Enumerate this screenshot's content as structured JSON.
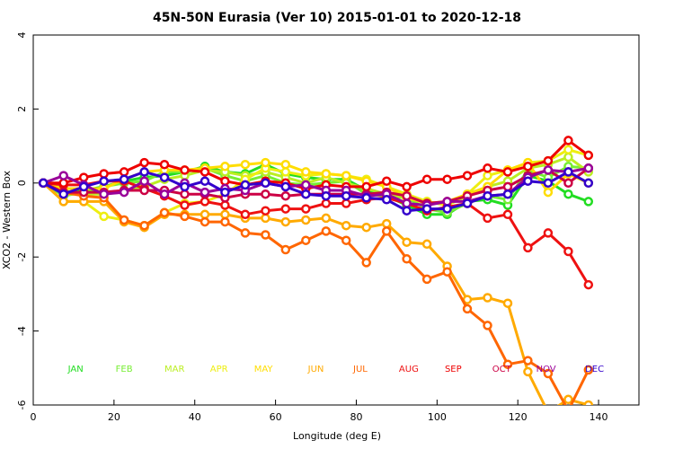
{
  "chart_data": {
    "type": "line",
    "title": "45N-50N Eurasia (Ver 10)   2015-01-01 to 2020-12-18",
    "xlabel": "Longitude (deg E)",
    "ylabel": "XCO2 - Western Box",
    "xlim": [
      0,
      150
    ],
    "ylim": [
      -6,
      4
    ],
    "xticks": [
      0,
      20,
      40,
      60,
      80,
      100,
      120,
      140
    ],
    "yticks": [
      -6,
      -4,
      -2,
      0,
      2,
      4
    ],
    "grid": false,
    "legend_placement": "bottom, inside plot at y=-5",
    "legend_y": -5,
    "x": [
      2.5,
      7.5,
      12.5,
      17.5,
      22.5,
      27.5,
      32.5,
      37.5,
      42.5,
      47.5,
      52.5,
      57.5,
      62.5,
      67.5,
      72.5,
      77.5,
      82.5,
      87.5,
      92.5,
      97.5,
      102.5,
      107.5,
      112.5,
      117.5,
      122.5,
      127.5,
      132.5,
      137.5
    ],
    "series": [
      {
        "name": "JAN",
        "label_x": 10.5,
        "color": "#22dd22",
        "values": [
          0,
          -0.25,
          -0.2,
          -0.1,
          0.05,
          0.15,
          0.2,
          0.3,
          0.45,
          0.3,
          0.25,
          0.5,
          0.25,
          0.15,
          0.1,
          0.1,
          -0.2,
          -0.35,
          -0.6,
          -0.85,
          -0.85,
          -0.5,
          -0.45,
          -0.6,
          0.2,
          0.05,
          -0.3,
          -0.5
        ]
      },
      {
        "name": "FEB",
        "label_x": 22.5,
        "color": "#77ee33",
        "values": [
          0,
          -0.35,
          -0.25,
          -0.1,
          0.0,
          0.05,
          0.3,
          0.3,
          0.4,
          0.2,
          0.05,
          0.2,
          0.0,
          -0.05,
          0.0,
          0.05,
          -0.3,
          -0.35,
          -0.4,
          -0.7,
          -0.8,
          -0.55,
          -0.35,
          -0.45,
          0.35,
          0.15,
          0.45,
          0.4
        ]
      },
      {
        "name": "MAR",
        "label_x": 35,
        "color": "#bbee22",
        "values": [
          0,
          -0.3,
          -0.3,
          -0.3,
          -0.2,
          -0.1,
          0.1,
          0.2,
          0.35,
          0.3,
          0.2,
          0.3,
          0.15,
          0.0,
          0.15,
          0.0,
          -0.15,
          -0.3,
          -0.4,
          -0.5,
          -0.6,
          -0.35,
          -0.1,
          0.05,
          0.4,
          0.5,
          0.7,
          0.3
        ]
      },
      {
        "name": "APR",
        "label_x": 46,
        "color": "#eeee11",
        "values": [
          0,
          -0.5,
          -0.5,
          -0.9,
          -1.0,
          -1.15,
          -0.8,
          -0.55,
          -0.5,
          -0.3,
          0.1,
          0.4,
          0.3,
          0.2,
          0.25,
          0.2,
          0.1,
          -0.1,
          -0.3,
          -0.5,
          -0.6,
          -0.3,
          0.2,
          0.35,
          0.55,
          0.6,
          0.9,
          0.75
        ]
      },
      {
        "name": "MAY",
        "label_x": 57,
        "color": "#ffdd00",
        "values": [
          0,
          -0.15,
          -0.15,
          -0.15,
          0.1,
          0.3,
          0.35,
          0.35,
          0.4,
          0.45,
          0.5,
          0.55,
          0.5,
          0.3,
          0.25,
          0.2,
          0.05,
          -0.1,
          -0.4,
          -0.55,
          -0.5,
          -0.3,
          -0.1,
          0.35,
          0.55,
          -0.25,
          0.25,
          0.0
        ]
      },
      {
        "name": "JUN",
        "label_x": 70,
        "color": "#ffaa00",
        "values": [
          0,
          -0.5,
          -0.5,
          -0.5,
          -1.05,
          -1.2,
          -0.85,
          -0.85,
          -0.85,
          -0.85,
          -0.95,
          -0.95,
          -1.05,
          -1.0,
          -0.95,
          -1.15,
          -1.2,
          -1.1,
          -1.6,
          -1.65,
          -2.25,
          -3.15,
          -3.1,
          -3.25,
          -5.1,
          -6.2,
          -5.85,
          -6.0
        ]
      },
      {
        "name": "JUL",
        "label_x": 81,
        "color": "#ff6600",
        "values": [
          0,
          -0.25,
          -0.35,
          -0.4,
          -1.0,
          -1.15,
          -0.8,
          -0.9,
          -1.05,
          -1.05,
          -1.35,
          -1.4,
          -1.8,
          -1.55,
          -1.3,
          -1.55,
          -2.15,
          -1.3,
          -2.05,
          -2.6,
          -2.4,
          -3.4,
          -3.85,
          -4.9,
          -4.8,
          -5.15,
          -6.15,
          -5.05
        ]
      },
      {
        "name": "AUG",
        "label_x": 93,
        "color": "#ee1111",
        "values": [
          0,
          -0.05,
          -0.05,
          0.05,
          0.05,
          -0.15,
          -0.35,
          -0.6,
          -0.5,
          -0.6,
          -0.85,
          -0.75,
          -0.7,
          -0.7,
          -0.55,
          -0.55,
          -0.45,
          -0.4,
          -0.55,
          -0.75,
          -0.65,
          -0.55,
          -0.95,
          -0.85,
          -1.75,
          -1.35,
          -1.85,
          -2.75
        ]
      },
      {
        "name": "SEP",
        "label_x": 104,
        "color": "#ee0000",
        "values": [
          0,
          0.0,
          0.15,
          0.25,
          0.3,
          0.55,
          0.5,
          0.35,
          0.3,
          0.05,
          -0.05,
          0.05,
          0.0,
          -0.15,
          -0.05,
          -0.1,
          -0.1,
          0.05,
          -0.1,
          0.1,
          0.1,
          0.2,
          0.4,
          0.3,
          0.45,
          0.6,
          1.15,
          0.75
        ]
      },
      {
        "name": "OCT",
        "label_x": 116,
        "color": "#cc0044",
        "values": [
          0,
          -0.25,
          -0.25,
          -0.25,
          -0.2,
          -0.2,
          -0.2,
          -0.3,
          -0.3,
          -0.4,
          -0.3,
          -0.3,
          -0.35,
          -0.3,
          -0.3,
          -0.3,
          -0.3,
          -0.25,
          -0.35,
          -0.55,
          -0.5,
          -0.35,
          -0.2,
          -0.1,
          0.2,
          0.35,
          0.0,
          0.4
        ]
      },
      {
        "name": "NOV",
        "label_x": 127,
        "color": "#990099",
        "values": [
          0,
          0.2,
          -0.05,
          -0.3,
          -0.25,
          0.05,
          -0.3,
          0.0,
          -0.25,
          -0.15,
          -0.2,
          0.0,
          -0.1,
          -0.05,
          -0.2,
          -0.2,
          -0.35,
          -0.3,
          -0.55,
          -0.6,
          -0.5,
          -0.5,
          -0.35,
          -0.3,
          0.15,
          0.35,
          0.3,
          0.4
        ]
      },
      {
        "name": "DEC",
        "label_x": 139,
        "color": "#3300cc",
        "values": [
          0,
          -0.3,
          -0.1,
          0.05,
          0.1,
          0.3,
          0.15,
          -0.1,
          0.05,
          -0.25,
          -0.05,
          0.0,
          -0.1,
          -0.3,
          -0.35,
          -0.35,
          -0.4,
          -0.45,
          -0.75,
          -0.7,
          -0.7,
          -0.55,
          -0.35,
          -0.3,
          0.05,
          0.0,
          0.3,
          0.0
        ]
      }
    ]
  }
}
